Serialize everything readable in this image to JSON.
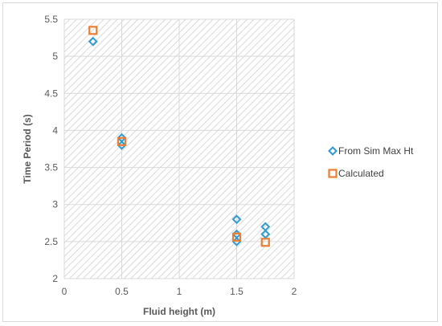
{
  "chart_data": {
    "type": "scatter",
    "title": "",
    "xlabel": "Fluid height (m)",
    "ylabel": "Time Period (s)",
    "xlim": [
      0,
      2
    ],
    "ylim": [
      2,
      5.5
    ],
    "xticks": [
      0,
      0.5,
      1,
      1.5,
      2
    ],
    "xtick_labels": [
      "0",
      "0.5",
      "1",
      "1.5",
      "2"
    ],
    "yticks": [
      2,
      2.5,
      3,
      3.5,
      4,
      4.5,
      5,
      5.5
    ],
    "ytick_labels": [
      "2",
      "2.5",
      "3",
      "3.5",
      "4",
      "4.5",
      "5",
      "5.5"
    ],
    "grid": true,
    "legend_position": "right",
    "plot_background": "hatched",
    "series": [
      {
        "name": "From Sim Max Ht",
        "marker": "diamond",
        "color": "#2e9bd6",
        "points": [
          {
            "x": 0.25,
            "y": 5.2
          },
          {
            "x": 0.5,
            "y": 3.9
          },
          {
            "x": 0.5,
            "y": 3.8
          },
          {
            "x": 1.5,
            "y": 2.8
          },
          {
            "x": 1.5,
            "y": 2.6
          },
          {
            "x": 1.5,
            "y": 2.5
          },
          {
            "x": 1.75,
            "y": 2.7
          },
          {
            "x": 1.75,
            "y": 2.6
          }
        ]
      },
      {
        "name": "Calculated",
        "marker": "square",
        "color": "#ed7d31",
        "points": [
          {
            "x": 0.25,
            "y": 5.35
          },
          {
            "x": 0.5,
            "y": 3.85
          },
          {
            "x": 1.5,
            "y": 2.56
          },
          {
            "x": 1.75,
            "y": 2.49
          }
        ]
      }
    ]
  }
}
